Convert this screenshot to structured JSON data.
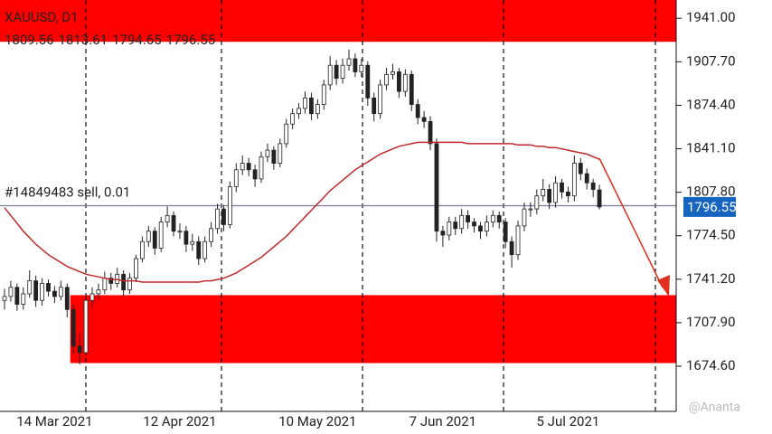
{
  "chart_data": {
    "type": "candlestick",
    "title": "XAUUSD, D1",
    "ylim": [
      1640,
      1955
    ],
    "yticks": [
      {
        "value": 1941,
        "label": "1941.00"
      },
      {
        "value": 1907.7,
        "label": "1907.70"
      },
      {
        "value": 1874.4,
        "label": "1874.40"
      },
      {
        "value": 1841.1,
        "label": "1841.10"
      },
      {
        "value": 1807.8,
        "label": "1807.80"
      },
      {
        "value": 1774.5,
        "label": "1774.50"
      },
      {
        "value": 1741.2,
        "label": "1741.20"
      },
      {
        "value": 1707.9,
        "label": "1707.90"
      },
      {
        "value": 1674.6,
        "label": "1674.60"
      }
    ],
    "categories": [
      null,
      null,
      null,
      null,
      null,
      null,
      null,
      null,
      "14 Mar 2021",
      null,
      null,
      null,
      null,
      null,
      null,
      null,
      null,
      null,
      null,
      null,
      null,
      null,
      null,
      null,
      null,
      null,
      null,
      null,
      "12 Apr 2021",
      null,
      null,
      null,
      null,
      null,
      null,
      null,
      null,
      null,
      null,
      null,
      null,
      null,
      null,
      null,
      null,
      null,
      null,
      null,
      null,
      null,
      "10 May 2021",
      null,
      null,
      null,
      null,
      null,
      null,
      null,
      null,
      null,
      null,
      null,
      null,
      null,
      null,
      null,
      null,
      null,
      null,
      null,
      "7 Jun 2021",
      null,
      null,
      null,
      null,
      null,
      null,
      null,
      null,
      null,
      null,
      null,
      null,
      null,
      null,
      null,
      null,
      null,
      null,
      null,
      "5 Jul 2021",
      null,
      null,
      null,
      null,
      null
    ],
    "ohlc": [
      [
        1725,
        1734,
        1718,
        1728
      ],
      [
        1728,
        1740,
        1724,
        1735
      ],
      [
        1735,
        1738,
        1717,
        1722
      ],
      [
        1722,
        1735,
        1718,
        1730
      ],
      [
        1730,
        1748,
        1727,
        1740
      ],
      [
        1740,
        1744,
        1720,
        1725
      ],
      [
        1725,
        1742,
        1721,
        1738
      ],
      [
        1738,
        1741,
        1728,
        1732
      ],
      [
        1732,
        1736,
        1723,
        1728
      ],
      [
        1728,
        1740,
        1725,
        1735
      ],
      [
        1735,
        1738,
        1712,
        1718
      ],
      [
        1718,
        1722,
        1684,
        1690
      ],
      [
        1690,
        1700,
        1676,
        1685
      ],
      [
        1685,
        1730,
        1683,
        1725
      ],
      [
        1725,
        1735,
        1720,
        1730
      ],
      [
        1730,
        1738,
        1726,
        1733
      ],
      [
        1733,
        1747,
        1730,
        1742
      ],
      [
        1742,
        1746,
        1733,
        1738
      ],
      [
        1738,
        1750,
        1735,
        1745
      ],
      [
        1745,
        1748,
        1728,
        1733
      ],
      [
        1733,
        1746,
        1730,
        1742
      ],
      [
        1742,
        1760,
        1739,
        1757
      ],
      [
        1757,
        1774,
        1754,
        1770
      ],
      [
        1770,
        1782,
        1766,
        1778
      ],
      [
        1778,
        1781,
        1760,
        1765
      ],
      [
        1765,
        1789,
        1762,
        1785
      ],
      [
        1785,
        1797,
        1781,
        1790
      ],
      [
        1790,
        1793,
        1774,
        1778
      ],
      [
        1778,
        1784,
        1772,
        1778
      ],
      [
        1778,
        1782,
        1762,
        1768
      ],
      [
        1768,
        1776,
        1763,
        1770
      ],
      [
        1770,
        1774,
        1752,
        1757
      ],
      [
        1757,
        1774,
        1754,
        1770
      ],
      [
        1770,
        1785,
        1766,
        1780
      ],
      [
        1780,
        1799,
        1776,
        1795
      ],
      [
        1795,
        1798,
        1778,
        1783
      ],
      [
        1783,
        1816,
        1780,
        1812
      ],
      [
        1812,
        1830,
        1808,
        1825
      ],
      [
        1825,
        1836,
        1821,
        1830
      ],
      [
        1830,
        1834,
        1820,
        1825
      ],
      [
        1825,
        1829,
        1812,
        1818
      ],
      [
        1818,
        1839,
        1815,
        1835
      ],
      [
        1835,
        1845,
        1831,
        1840
      ],
      [
        1840,
        1843,
        1825,
        1830
      ],
      [
        1830,
        1849,
        1827,
        1845
      ],
      [
        1845,
        1864,
        1842,
        1860
      ],
      [
        1860,
        1872,
        1856,
        1868
      ],
      [
        1868,
        1876,
        1864,
        1872
      ],
      [
        1872,
        1885,
        1868,
        1880
      ],
      [
        1880,
        1884,
        1863,
        1868
      ],
      [
        1868,
        1879,
        1864,
        1875
      ],
      [
        1875,
        1894,
        1871,
        1890
      ],
      [
        1890,
        1912,
        1886,
        1905
      ],
      [
        1905,
        1909,
        1890,
        1895
      ],
      [
        1895,
        1910,
        1891,
        1905
      ],
      [
        1905,
        1917,
        1901,
        1910
      ],
      [
        1910,
        1914,
        1896,
        1900
      ],
      [
        1900,
        1910,
        1896,
        1905
      ],
      [
        1905,
        1908,
        1874,
        1880
      ],
      [
        1880,
        1884,
        1862,
        1868
      ],
      [
        1868,
        1894,
        1864,
        1890
      ],
      [
        1890,
        1903,
        1886,
        1898
      ],
      [
        1898,
        1906,
        1894,
        1900
      ],
      [
        1900,
        1903,
        1880,
        1885
      ],
      [
        1885,
        1902,
        1881,
        1898
      ],
      [
        1898,
        1901,
        1870,
        1875
      ],
      [
        1875,
        1879,
        1860,
        1865
      ],
      [
        1865,
        1870,
        1857,
        1862
      ],
      [
        1862,
        1866,
        1840,
        1845
      ],
      [
        1845,
        1849,
        1770,
        1778
      ],
      [
        1778,
        1782,
        1766,
        1775
      ],
      [
        1775,
        1789,
        1771,
        1785
      ],
      [
        1785,
        1789,
        1775,
        1780
      ],
      [
        1780,
        1795,
        1776,
        1790
      ],
      [
        1790,
        1794,
        1780,
        1785
      ],
      [
        1785,
        1788,
        1777,
        1782
      ],
      [
        1782,
        1785,
        1772,
        1778
      ],
      [
        1778,
        1790,
        1774,
        1785
      ],
      [
        1785,
        1794,
        1781,
        1790
      ],
      [
        1790,
        1793,
        1780,
        1785
      ],
      [
        1785,
        1788,
        1765,
        1770
      ],
      [
        1770,
        1774,
        1750,
        1760
      ],
      [
        1760,
        1786,
        1756,
        1782
      ],
      [
        1782,
        1800,
        1778,
        1795
      ],
      [
        1795,
        1800,
        1789,
        1795
      ],
      [
        1795,
        1810,
        1791,
        1805
      ],
      [
        1805,
        1818,
        1801,
        1810
      ],
      [
        1810,
        1814,
        1795,
        1800
      ],
      [
        1800,
        1820,
        1796,
        1815
      ],
      [
        1815,
        1818,
        1803,
        1808
      ],
      [
        1808,
        1812,
        1800,
        1805
      ],
      [
        1805,
        1836,
        1801,
        1830
      ],
      [
        1830,
        1834,
        1817,
        1822
      ],
      [
        1822,
        1826,
        1810,
        1815
      ],
      [
        1815,
        1818,
        1804,
        1810
      ],
      [
        1809.56,
        1813.61,
        1794.65,
        1796.55
      ]
    ],
    "ma": {
      "color": "#c0282d",
      "values": [
        1796,
        1790,
        1784,
        1778,
        1773,
        1768,
        1764,
        1760,
        1757,
        1754,
        1751,
        1749,
        1747,
        1745,
        1744,
        1743,
        1742,
        1741,
        1741,
        1740,
        1740,
        1740,
        1739,
        1739,
        1739,
        1739,
        1739,
        1739,
        1739,
        1739,
        1739,
        1739,
        1740,
        1740,
        1741,
        1742,
        1744,
        1746,
        1749,
        1752,
        1755,
        1758,
        1762,
        1766,
        1770,
        1774,
        1779,
        1784,
        1789,
        1794,
        1799,
        1804,
        1809,
        1813,
        1817,
        1821,
        1825,
        1828,
        1831,
        1834,
        1837,
        1839,
        1841,
        1843,
        1844,
        1845,
        1846,
        1846,
        1846,
        1846,
        1846,
        1846,
        1846,
        1846,
        1845,
        1845,
        1845,
        1845,
        1845,
        1845,
        1845,
        1845,
        1844,
        1844,
        1844,
        1843,
        1843,
        1842,
        1842,
        1841,
        1840,
        1839,
        1838,
        1837,
        1835,
        1833
      ]
    },
    "zones": [
      {
        "low": 1923,
        "high": 1955,
        "start": 0
      },
      {
        "low": 1677,
        "high": 1729,
        "start": 11
      }
    ],
    "zone_color": "#ff0000",
    "order": {
      "label": "#14849483 sell, 0.01",
      "price": 1797.5,
      "color": "#7a7a9a"
    },
    "price_tag_color": "#1565c0",
    "watermark": "@Ananta"
  }
}
